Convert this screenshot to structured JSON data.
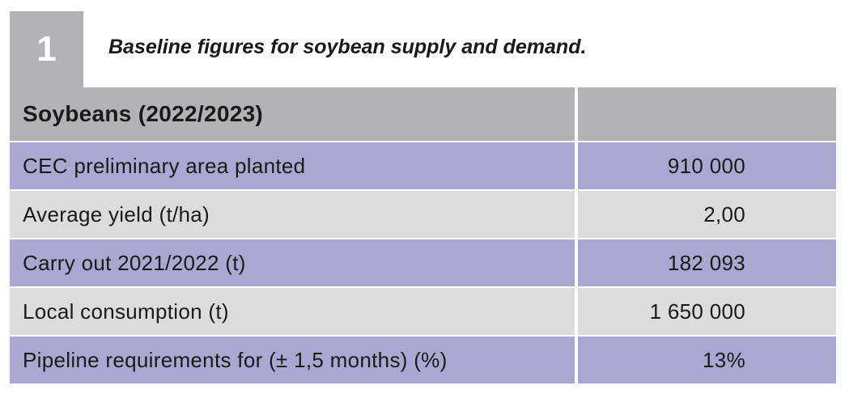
{
  "figure": {
    "number": "1",
    "caption": "Baseline figures for soybean supply and demand."
  },
  "table": {
    "header": {
      "label": "Soybeans (2022/2023)",
      "value": ""
    },
    "rows": [
      {
        "label": "CEC preliminary area planted",
        "value": "910 000"
      },
      {
        "label": "Average yield (t/ha)",
        "value": "2,00"
      },
      {
        "label": "Carry out 2021/2022 (t)",
        "value": "182 093"
      },
      {
        "label": "Local consumption (t)",
        "value": "1 650 000"
      },
      {
        "label": "Pipeline requirements for (± 1,5 months) (%)",
        "value": "13%"
      }
    ]
  },
  "colors": {
    "header_grey": "#b3b3b5",
    "row_purple": "#aba7d0",
    "row_grey": "#dcdcdc"
  }
}
